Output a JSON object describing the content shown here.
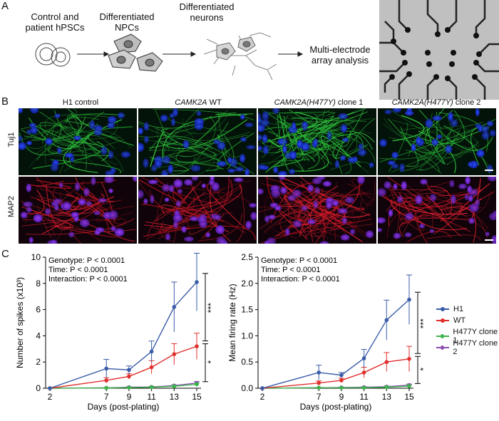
{
  "panel_a": {
    "letter": "A",
    "steps": [
      {
        "line1": "Control and",
        "line2": "patient hPSCs"
      },
      {
        "line1": "Differentiated",
        "line2": "NPCs"
      },
      {
        "line1": "Differentiated",
        "line2": "neurons"
      },
      {
        "line1": "Multi-electrode",
        "line2": "array analysis"
      }
    ]
  },
  "panel_b": {
    "letter": "B",
    "columns": [
      {
        "pre": "H1 control",
        "italic": "",
        "post": ""
      },
      {
        "pre": "",
        "italic": "CAMK2A",
        "post": " WT"
      },
      {
        "pre": "",
        "italic": "CAMK2A(H477Y)",
        "post": " clone 1"
      },
      {
        "pre": "",
        "italic": "CAMK2A(H477Y)",
        "post": " clone 2"
      }
    ],
    "rows": [
      {
        "label": "Tuj1",
        "color": "#3cb043"
      },
      {
        "label": "MAP2",
        "color": "#e0202a"
      }
    ]
  },
  "panel_c": {
    "letter": "C",
    "legend": [
      {
        "name": "H1",
        "color": "#3a5ca8"
      },
      {
        "name": "WT",
        "color": "#e0302e"
      },
      {
        "name": "H477Y clone 1",
        "color": "#3cb44b"
      },
      {
        "name": "H477Y clone 2",
        "color": "#8a4fb0"
      }
    ]
  },
  "chart_data": [
    {
      "type": "line",
      "xlabel": "Days (post-plating)",
      "ylabel": "Number of spikes (x10³)",
      "x": [
        2,
        7,
        9,
        11,
        13,
        15
      ],
      "ylim": [
        0,
        10
      ],
      "yticks": [
        0,
        2,
        4,
        6,
        8,
        10
      ],
      "stats": [
        "Genotype: P < 0.0001",
        "Time: P < 0.0001",
        "Interaction: P < 0.0001"
      ],
      "significance": [
        "***",
        "*"
      ],
      "series": [
        {
          "name": "H1",
          "color": "#3a5ca8",
          "values": [
            0,
            1.5,
            1.4,
            2.8,
            6.2,
            8.1
          ],
          "err": [
            0,
            0.7,
            0.3,
            0.8,
            1.9,
            2.2
          ]
        },
        {
          "name": "WT",
          "color": "#e0302e",
          "values": [
            0,
            0.6,
            0.9,
            1.6,
            2.6,
            3.2
          ],
          "err": [
            0,
            0.2,
            0.2,
            0.5,
            0.8,
            1.0
          ]
        },
        {
          "name": "H477Y clone 1",
          "color": "#3cb44b",
          "values": [
            0,
            0.02,
            0.05,
            0.08,
            0.15,
            0.3
          ],
          "err": [
            0,
            0.02,
            0.02,
            0.03,
            0.05,
            0.1
          ]
        },
        {
          "name": "H477Y clone 2",
          "color": "#8a4fb0",
          "values": [
            0,
            0.03,
            0.08,
            0.1,
            0.2,
            0.4
          ],
          "err": [
            0,
            0.02,
            0.03,
            0.04,
            0.06,
            0.12
          ]
        }
      ]
    },
    {
      "type": "line",
      "xlabel": "Days (post-plating)",
      "ylabel": "Mean firing rate (Hz)",
      "x": [
        2,
        7,
        9,
        11,
        13,
        15
      ],
      "ylim": [
        0,
        2.5
      ],
      "yticks": [
        0.0,
        0.5,
        1.0,
        1.5,
        2.0,
        2.5
      ],
      "stats": [
        "Genotype: P < 0.0001",
        "Time: P < 0.0001",
        "Interaction: P < 0.0001"
      ],
      "significance": [
        "***",
        "*"
      ],
      "series": [
        {
          "name": "H1",
          "color": "#3a5ca8",
          "values": [
            0,
            0.3,
            0.25,
            0.57,
            1.3,
            1.69
          ],
          "err": [
            0,
            0.14,
            0.05,
            0.17,
            0.38,
            0.47
          ]
        },
        {
          "name": "WT",
          "color": "#e0302e",
          "values": [
            0,
            0.1,
            0.15,
            0.3,
            0.5,
            0.56
          ],
          "err": [
            0,
            0.04,
            0.04,
            0.1,
            0.18,
            0.24
          ]
        },
        {
          "name": "H477Y clone 1",
          "color": "#3cb44b",
          "values": [
            0,
            0.01,
            0.01,
            0.01,
            0.02,
            0.04
          ],
          "err": [
            0,
            0.005,
            0.005,
            0.005,
            0.01,
            0.02
          ]
        },
        {
          "name": "H477Y clone 2",
          "color": "#8a4fb0",
          "values": [
            0,
            0.01,
            0.015,
            0.02,
            0.03,
            0.06
          ],
          "err": [
            0,
            0.005,
            0.005,
            0.01,
            0.01,
            0.02
          ]
        }
      ]
    }
  ]
}
